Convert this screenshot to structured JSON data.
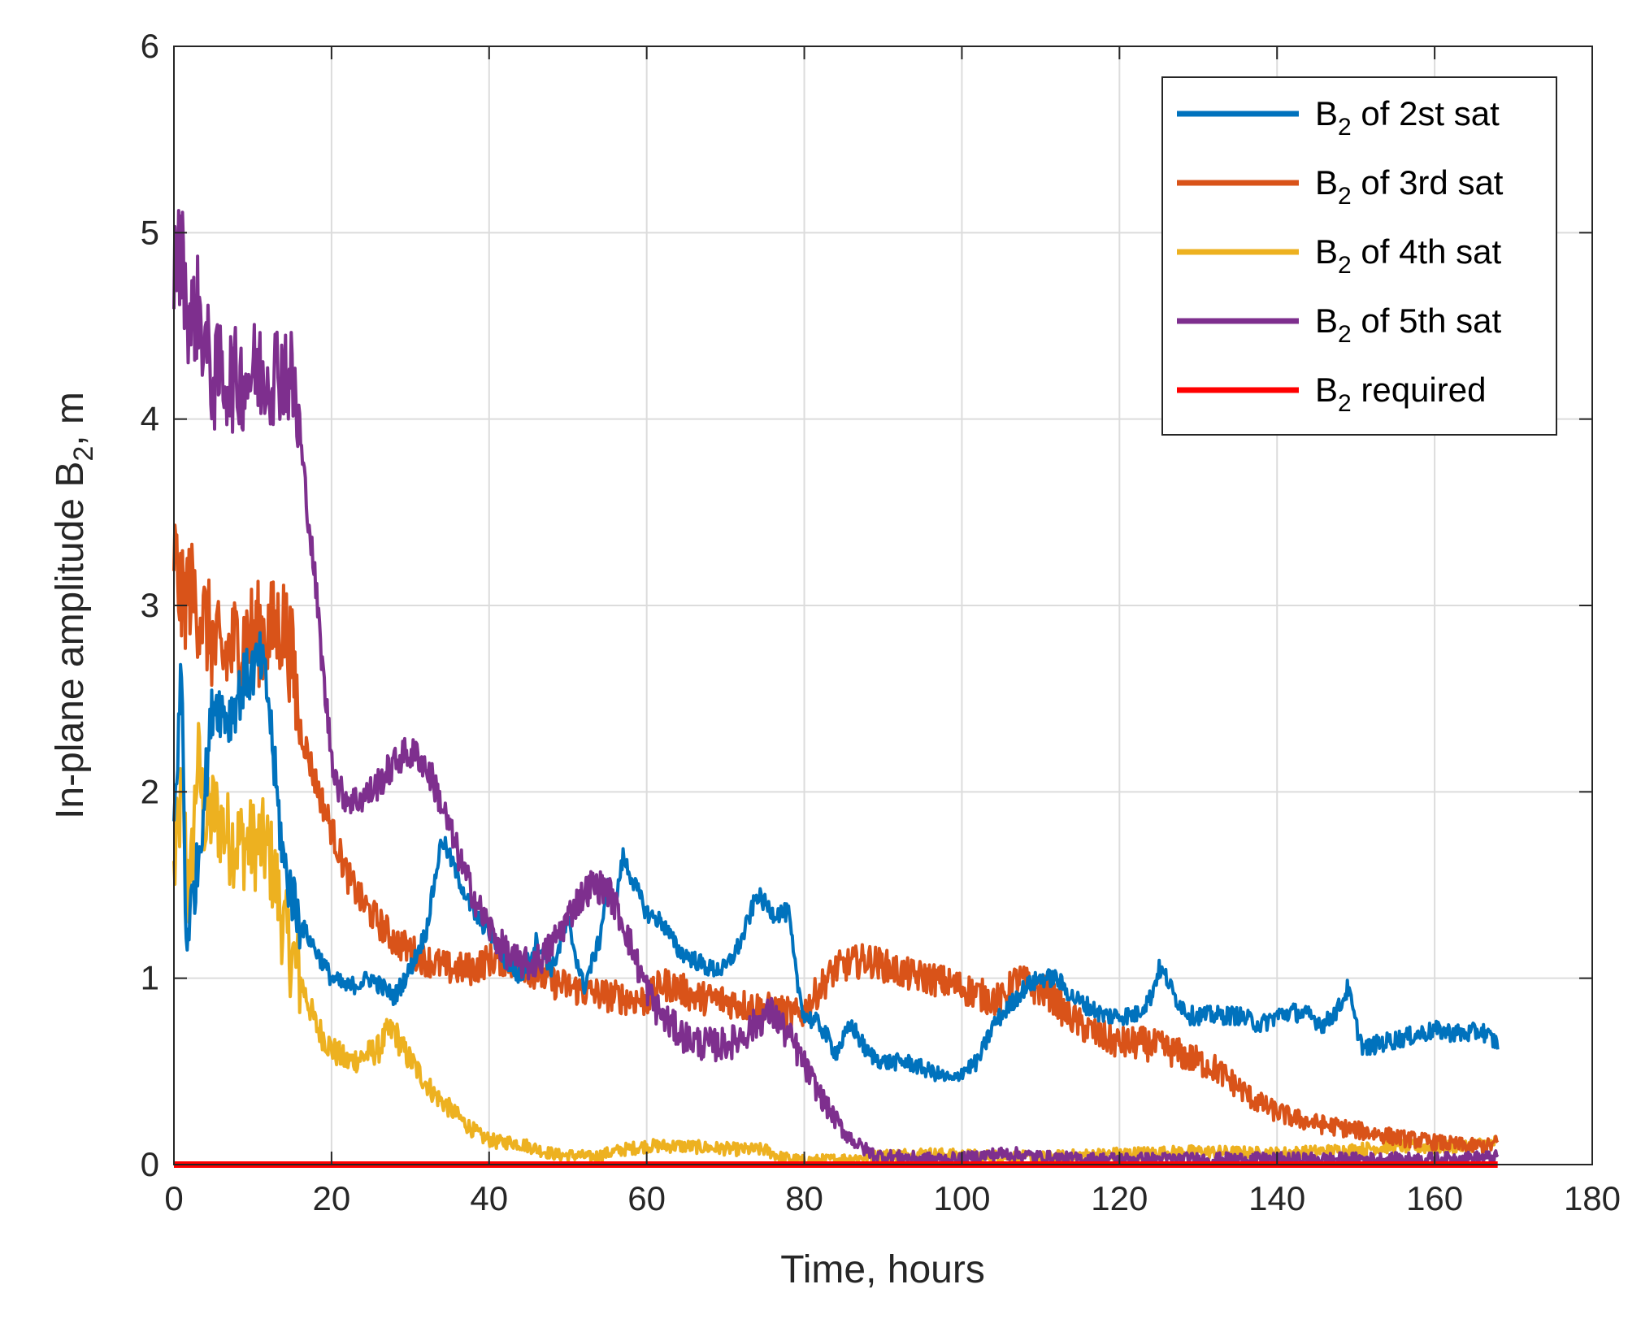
{
  "chart_data": {
    "type": "line",
    "xlabel": "Time, hours",
    "ylabel_parts": [
      "In-plane amplitude B",
      "2",
      ", m"
    ],
    "xlim": [
      0,
      180
    ],
    "ylim": [
      0,
      6
    ],
    "xticks": [
      0,
      20,
      40,
      60,
      80,
      100,
      120,
      140,
      160,
      180
    ],
    "yticks": [
      0,
      1,
      2,
      3,
      4,
      5,
      6
    ],
    "grid": true,
    "legend_position": "top-right",
    "series": [
      {
        "name": "B2 of 2st sat",
        "legend_parts": [
          "B",
          "2",
          " of 2st sat"
        ],
        "color": "#0072BD",
        "noise": 0.05,
        "points": [
          [
            0,
            1.8
          ],
          [
            1,
            2.7
          ],
          [
            1.5,
            1.2
          ],
          [
            3,
            1.6
          ],
          [
            5,
            2.5
          ],
          [
            7,
            2.4
          ],
          [
            9,
            2.6
          ],
          [
            11,
            2.7
          ],
          [
            12,
            2.5
          ],
          [
            13,
            2.0
          ],
          [
            14,
            1.6
          ],
          [
            16,
            1.3
          ],
          [
            18,
            1.15
          ],
          [
            20,
            1.0
          ],
          [
            22,
            0.95
          ],
          [
            25,
            1.0
          ],
          [
            28,
            0.9
          ],
          [
            30,
            1.05
          ],
          [
            32,
            1.25
          ],
          [
            34,
            1.75
          ],
          [
            36,
            1.55
          ],
          [
            38,
            1.35
          ],
          [
            40,
            1.25
          ],
          [
            42,
            1.1
          ],
          [
            44,
            1.0
          ],
          [
            46,
            1.2
          ],
          [
            48,
            1.05
          ],
          [
            50,
            1.3
          ],
          [
            52,
            0.95
          ],
          [
            54,
            1.2
          ],
          [
            55,
            1.5
          ],
          [
            56,
            1.4
          ],
          [
            57,
            1.65
          ],
          [
            58,
            1.55
          ],
          [
            60,
            1.35
          ],
          [
            62,
            1.3
          ],
          [
            64,
            1.15
          ],
          [
            66,
            1.1
          ],
          [
            68,
            1.05
          ],
          [
            70,
            1.05
          ],
          [
            72,
            1.2
          ],
          [
            74,
            1.45
          ],
          [
            76,
            1.35
          ],
          [
            78,
            1.35
          ],
          [
            79,
            1.0
          ],
          [
            80,
            0.8
          ],
          [
            82,
            0.75
          ],
          [
            84,
            0.6
          ],
          [
            86,
            0.75
          ],
          [
            88,
            0.6
          ],
          [
            90,
            0.55
          ],
          [
            93,
            0.55
          ],
          [
            96,
            0.5
          ],
          [
            99,
            0.45
          ],
          [
            100,
            0.5
          ],
          [
            102,
            0.55
          ],
          [
            104,
            0.75
          ],
          [
            106,
            0.85
          ],
          [
            108,
            0.95
          ],
          [
            110,
            1.0
          ],
          [
            112,
            1.0
          ],
          [
            114,
            0.9
          ],
          [
            116,
            0.85
          ],
          [
            118,
            0.8
          ],
          [
            120,
            0.8
          ],
          [
            122,
            0.8
          ],
          [
            124,
            0.9
          ],
          [
            125,
            1.05
          ],
          [
            126,
            1.0
          ],
          [
            127,
            0.9
          ],
          [
            129,
            0.8
          ],
          [
            132,
            0.8
          ],
          [
            135,
            0.8
          ],
          [
            138,
            0.75
          ],
          [
            140,
            0.8
          ],
          [
            142,
            0.82
          ],
          [
            144,
            0.8
          ],
          [
            146,
            0.75
          ],
          [
            148,
            0.85
          ],
          [
            149,
            0.95
          ],
          [
            150,
            0.75
          ],
          [
            151,
            0.62
          ],
          [
            153,
            0.65
          ],
          [
            156,
            0.68
          ],
          [
            160,
            0.72
          ],
          [
            164,
            0.7
          ],
          [
            166,
            0.72
          ],
          [
            167,
            0.68
          ],
          [
            168,
            0.65
          ]
        ]
      },
      {
        "name": "B2 of 3rd sat",
        "legend_parts": [
          "B",
          "2",
          " of 3rd sat"
        ],
        "color": "#D95319",
        "noise": 0.09,
        "points": [
          [
            0,
            3.3
          ],
          [
            1,
            3.0
          ],
          [
            2,
            3.1
          ],
          [
            4,
            2.9
          ],
          [
            6,
            2.7
          ],
          [
            8,
            2.8
          ],
          [
            10,
            2.85
          ],
          [
            12,
            2.85
          ],
          [
            14,
            2.9
          ],
          [
            15,
            2.7
          ],
          [
            16,
            2.35
          ],
          [
            18,
            2.05
          ],
          [
            20,
            1.8
          ],
          [
            22,
            1.55
          ],
          [
            24,
            1.4
          ],
          [
            26,
            1.3
          ],
          [
            28,
            1.2
          ],
          [
            30,
            1.15
          ],
          [
            32,
            1.1
          ],
          [
            35,
            1.05
          ],
          [
            38,
            1.05
          ],
          [
            40,
            1.1
          ],
          [
            42,
            1.1
          ],
          [
            45,
            1.05
          ],
          [
            48,
            0.98
          ],
          [
            52,
            0.93
          ],
          [
            56,
            0.9
          ],
          [
            60,
            0.88
          ],
          [
            62,
            0.97
          ],
          [
            64,
            0.95
          ],
          [
            66,
            0.9
          ],
          [
            70,
            0.88
          ],
          [
            73,
            0.85
          ],
          [
            76,
            0.83
          ],
          [
            79,
            0.8
          ],
          [
            80,
            0.82
          ],
          [
            82,
            0.95
          ],
          [
            84,
            1.05
          ],
          [
            86,
            1.08
          ],
          [
            88,
            1.1
          ],
          [
            90,
            1.07
          ],
          [
            93,
            1.02
          ],
          [
            96,
            1.0
          ],
          [
            100,
            0.95
          ],
          [
            103,
            0.9
          ],
          [
            105,
            0.88
          ],
          [
            107,
            1.0
          ],
          [
            109,
            0.95
          ],
          [
            111,
            0.92
          ],
          [
            113,
            0.82
          ],
          [
            115,
            0.75
          ],
          [
            117,
            0.7
          ],
          [
            120,
            0.65
          ],
          [
            123,
            0.65
          ],
          [
            126,
            0.62
          ],
          [
            129,
            0.57
          ],
          [
            132,
            0.52
          ],
          [
            135,
            0.42
          ],
          [
            137,
            0.35
          ],
          [
            139,
            0.3
          ],
          [
            142,
            0.25
          ],
          [
            145,
            0.22
          ],
          [
            148,
            0.2
          ],
          [
            152,
            0.17
          ],
          [
            156,
            0.14
          ],
          [
            160,
            0.12
          ],
          [
            164,
            0.1
          ],
          [
            167,
            0.1
          ],
          [
            168,
            0.12
          ]
        ]
      },
      {
        "name": "B2 of 4th sat",
        "legend_parts": [
          "B",
          "2",
          " of 4th sat"
        ],
        "color": "#EDB120",
        "noise": 0.08,
        "points": [
          [
            0,
            1.55
          ],
          [
            1,
            2.0
          ],
          [
            2,
            1.4
          ],
          [
            3,
            2.2
          ],
          [
            4,
            1.8
          ],
          [
            5,
            1.9
          ],
          [
            7,
            1.75
          ],
          [
            9,
            1.72
          ],
          [
            11,
            1.72
          ],
          [
            12,
            1.68
          ],
          [
            13,
            1.5
          ],
          [
            14,
            1.25
          ],
          [
            16,
            1.0
          ],
          [
            18,
            0.75
          ],
          [
            20,
            0.62
          ],
          [
            22,
            0.55
          ],
          [
            24,
            0.58
          ],
          [
            26,
            0.62
          ],
          [
            27,
            0.7
          ],
          [
            28,
            0.72
          ],
          [
            29,
            0.62
          ],
          [
            31,
            0.5
          ],
          [
            33,
            0.38
          ],
          [
            35,
            0.3
          ],
          [
            37,
            0.22
          ],
          [
            39,
            0.15
          ],
          [
            41,
            0.12
          ],
          [
            43,
            0.12
          ],
          [
            45,
            0.1
          ],
          [
            47,
            0.07
          ],
          [
            49,
            0.05
          ],
          [
            51,
            0.05
          ],
          [
            53,
            0.04
          ],
          [
            55,
            0.06
          ],
          [
            57,
            0.08
          ],
          [
            60,
            0.1
          ],
          [
            64,
            0.1
          ],
          [
            68,
            0.09
          ],
          [
            72,
            0.08
          ],
          [
            75,
            0.08
          ],
          [
            77,
            0.04
          ],
          [
            80,
            0.02
          ],
          [
            85,
            0.03
          ],
          [
            90,
            0.05
          ],
          [
            95,
            0.06
          ],
          [
            100,
            0.05
          ],
          [
            110,
            0.04
          ],
          [
            120,
            0.06
          ],
          [
            130,
            0.07
          ],
          [
            140,
            0.06
          ],
          [
            150,
            0.08
          ],
          [
            155,
            0.1
          ],
          [
            160,
            0.09
          ],
          [
            164,
            0.1
          ],
          [
            168,
            0.12
          ]
        ]
      },
      {
        "name": "B2 of 5th sat",
        "legend_parts": [
          "B",
          "2",
          " of 5th sat"
        ],
        "color": "#7E2F8E",
        "noise": 0.09,
        "points": [
          [
            0,
            4.8
          ],
          [
            1,
            4.9
          ],
          [
            2,
            4.5
          ],
          [
            3,
            4.6
          ],
          [
            4,
            4.4
          ],
          [
            5,
            4.2
          ],
          [
            6,
            4.25
          ],
          [
            8,
            4.2
          ],
          [
            10,
            4.25
          ],
          [
            12,
            4.25
          ],
          [
            14,
            4.28
          ],
          [
            15,
            4.2
          ],
          [
            16,
            3.9
          ],
          [
            17,
            3.5
          ],
          [
            18,
            3.1
          ],
          [
            19,
            2.6
          ],
          [
            20,
            2.2
          ],
          [
            21,
            2.0
          ],
          [
            23,
            1.95
          ],
          [
            25,
            2.0
          ],
          [
            27,
            2.1
          ],
          [
            29,
            2.2
          ],
          [
            31,
            2.2
          ],
          [
            33,
            2.05
          ],
          [
            35,
            1.8
          ],
          [
            37,
            1.55
          ],
          [
            39,
            1.35
          ],
          [
            41,
            1.2
          ],
          [
            43,
            1.1
          ],
          [
            45,
            1.07
          ],
          [
            47,
            1.12
          ],
          [
            49,
            1.25
          ],
          [
            51,
            1.4
          ],
          [
            53,
            1.5
          ],
          [
            55,
            1.48
          ],
          [
            57,
            1.3
          ],
          [
            59,
            1.05
          ],
          [
            61,
            0.85
          ],
          [
            63,
            0.75
          ],
          [
            65,
            0.68
          ],
          [
            67,
            0.65
          ],
          [
            69,
            0.64
          ],
          [
            71,
            0.66
          ],
          [
            73,
            0.72
          ],
          [
            75,
            0.8
          ],
          [
            76,
            0.81
          ],
          [
            77,
            0.75
          ],
          [
            79,
            0.62
          ],
          [
            81,
            0.45
          ],
          [
            83,
            0.3
          ],
          [
            85,
            0.18
          ],
          [
            87,
            0.1
          ],
          [
            89,
            0.05
          ],
          [
            92,
            0.04
          ],
          [
            96,
            0.03
          ],
          [
            100,
            0.03
          ],
          [
            103,
            0.05
          ],
          [
            106,
            0.06
          ],
          [
            110,
            0.04
          ],
          [
            115,
            0.03
          ],
          [
            120,
            0.03
          ],
          [
            125,
            0.03
          ],
          [
            130,
            0.03
          ],
          [
            140,
            0.03
          ],
          [
            150,
            0.03
          ],
          [
            160,
            0.03
          ],
          [
            168,
            0.04
          ]
        ]
      },
      {
        "name": "B2 required",
        "legend_parts": [
          "B",
          "2",
          " required"
        ],
        "color": "#FF0000",
        "noise": 0,
        "points": [
          [
            0,
            0
          ],
          [
            168,
            0
          ]
        ]
      }
    ]
  }
}
